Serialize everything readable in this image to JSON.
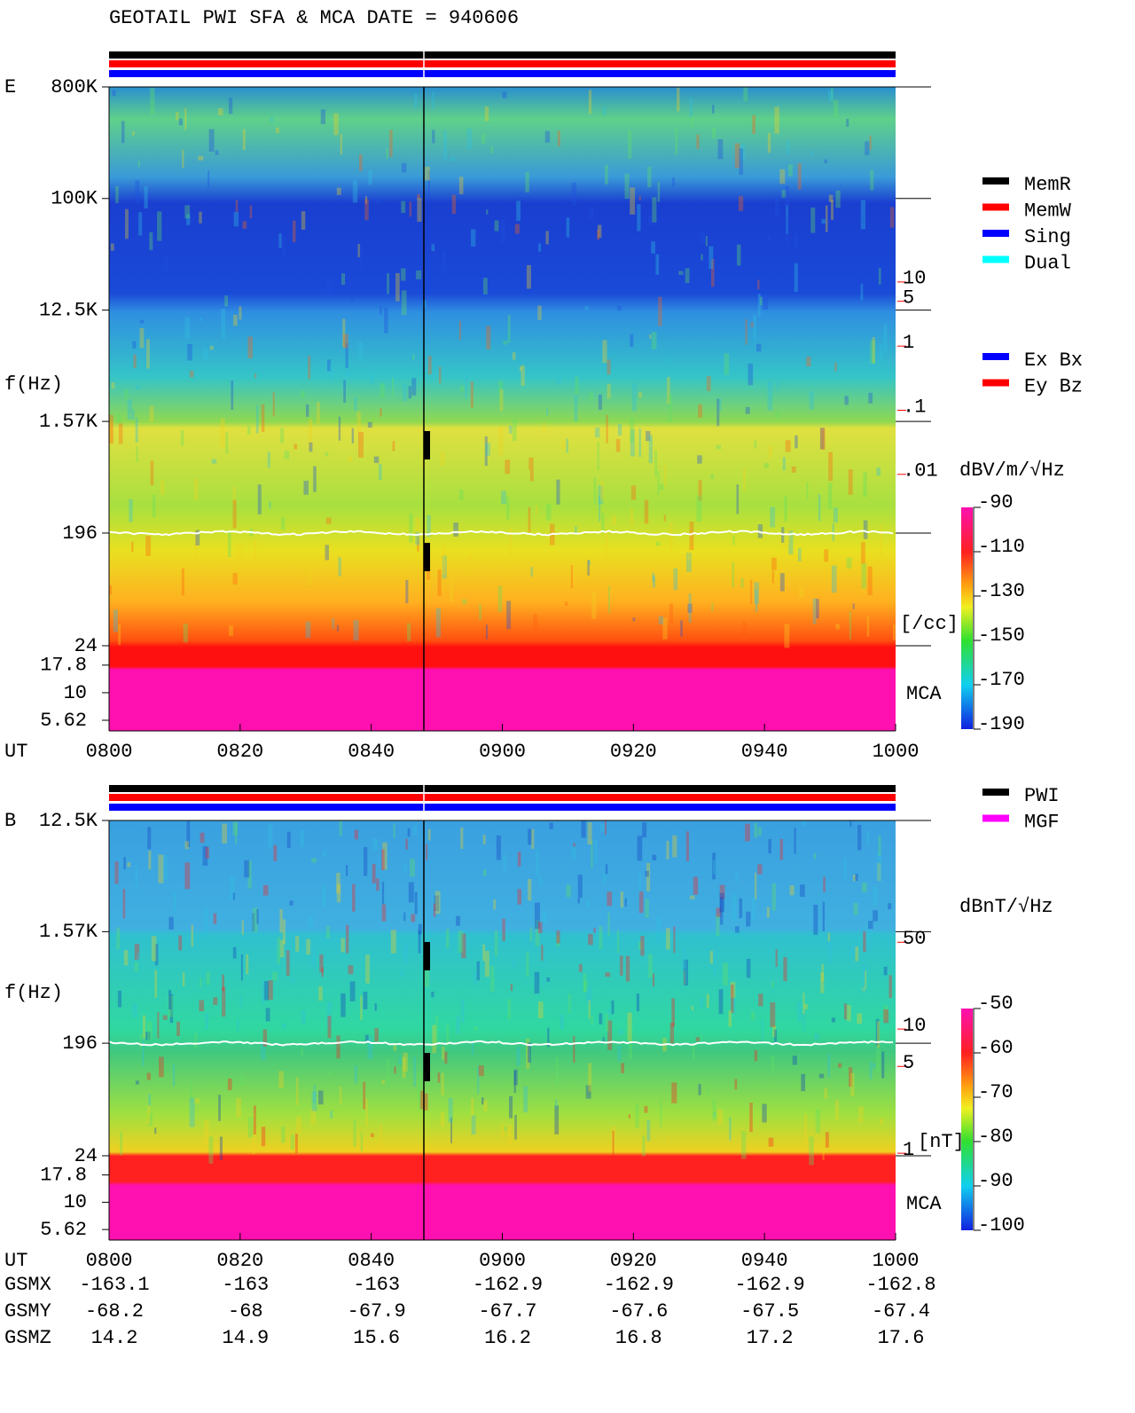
{
  "title": "GEOTAIL  PWI SFA & MCA  DATE = 940606",
  "chart_data": [
    {
      "type": "spectrogram",
      "panel": "E",
      "y_label": "f(Hz)",
      "x_label": "UT",
      "ylim": [
        24,
        800000
      ],
      "log_y": true,
      "yticks": [
        {
          "value": 800000,
          "label": "800K"
        },
        {
          "value": 100000,
          "label": "100K"
        },
        {
          "value": 12500,
          "label": "12.5K"
        },
        {
          "value": 1570,
          "label": "1.57K"
        },
        196,
        24
      ],
      "mca_label": "MCA",
      "mca_ylim": [
        4.5,
        26.7
      ],
      "mca_ticks": [
        17.8,
        10,
        5.62
      ],
      "xticks": [
        "0800",
        "0820",
        "0840",
        "0900",
        "0920",
        "0940",
        "1000"
      ],
      "y2lim": [
        1e-06,
        11000
      ],
      "y2ticks": [
        10,
        5,
        1,
        {
          "value": 0.1,
          "label": ".1"
        },
        {
          "value": 0.01,
          "label": ".01"
        }
      ],
      "y2_label": "[/cc]",
      "y2_color": "#ff0000",
      "colorbar": {
        "label": "dBV/m/√Hz",
        "clim": [
          -190,
          -90
        ],
        "ticks": [
          -90,
          -110,
          -130,
          -150,
          -170,
          -190
        ]
      },
      "legend": [
        {
          "name": "MemR",
          "color": "#000000"
        },
        {
          "name": "MemW",
          "color": "#ff0000"
        },
        {
          "name": "Sing",
          "color": "#0000ff"
        },
        {
          "name": "Dual",
          "color": "#00ffff"
        }
      ],
      "legend2": [
        {
          "name": "Ex Bx",
          "color": "#0000ff"
        },
        {
          "name": "Ey Bz",
          "color": "#ff0000"
        }
      ]
    },
    {
      "type": "spectrogram",
      "panel": "B",
      "y_label": "f(Hz)",
      "x_label": "UT",
      "ylim": [
        24,
        12500
      ],
      "log_y": true,
      "yticks": [
        {
          "value": 12500,
          "label": "12.5K"
        },
        {
          "value": 1570,
          "label": "1.57K"
        },
        196,
        24
      ],
      "mca_label": "MCA",
      "mca_ylim": [
        4.5,
        26.7
      ],
      "mca_ticks": [
        17.8,
        10,
        5.62
      ],
      "xticks": [
        "0800",
        "0820",
        "0840",
        "0900",
        "0920",
        "0940",
        "1000"
      ],
      "y2lim": [
        0.2,
        478
      ],
      "y2ticks": [
        50,
        10,
        5,
        1
      ],
      "y2_label": "[nT]",
      "y2_color": "#ff0000",
      "colorbar": {
        "label": "dBnT/√Hz",
        "clim": [
          -100,
          -50
        ],
        "ticks": [
          -50,
          -60,
          -70,
          -80,
          -90,
          -100
        ]
      },
      "legend": [
        {
          "name": "PWI",
          "color": "#000000"
        },
        {
          "name": "MGF",
          "color": "#ff00ff"
        }
      ]
    }
  ],
  "orbit": {
    "rows": [
      {
        "name": "GSMX",
        "values": [
          -163.1,
          -163.0,
          -163.0,
          -162.9,
          -162.9,
          -162.9,
          -162.8
        ]
      },
      {
        "name": "GSMY",
        "values": [
          -68.2,
          -68.0,
          -67.9,
          -67.7,
          -67.6,
          -67.5,
          -67.4
        ]
      },
      {
        "name": "GSMZ",
        "values": [
          14.2,
          14.9,
          15.6,
          16.2,
          16.8,
          17.2,
          17.6
        ]
      }
    ]
  }
}
